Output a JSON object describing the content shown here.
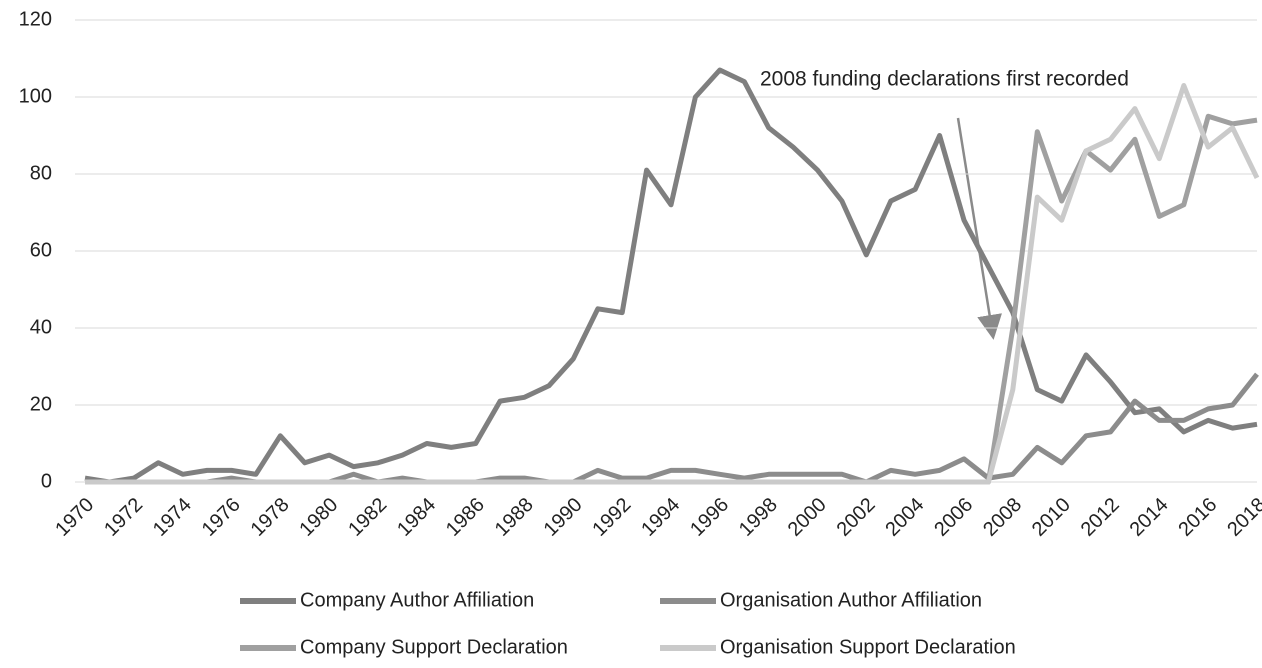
{
  "chart_data": {
    "type": "line",
    "annotation": "2008 funding declarations first recorded",
    "categories": [
      "1970",
      null,
      "1972",
      null,
      "1974",
      null,
      "1976",
      null,
      "1978",
      null,
      "1980",
      null,
      "1982",
      null,
      "1984",
      null,
      "1986",
      null,
      "1988",
      null,
      "1990",
      null,
      "1992",
      null,
      "1994",
      null,
      "1996",
      null,
      "1998",
      null,
      "2000",
      null,
      "2002",
      null,
      "2004",
      null,
      "2006",
      null,
      "2008",
      null,
      "2010",
      null,
      "2012",
      null,
      "2014",
      null,
      "2016",
      null,
      "2018"
    ],
    "series": [
      {
        "name": "Company Author Affiliation",
        "color": "#7f7f7f",
        "values": [
          1,
          0,
          1,
          5,
          2,
          3,
          3,
          2,
          12,
          5,
          7,
          4,
          5,
          7,
          10,
          9,
          10,
          21,
          22,
          25,
          32,
          45,
          44,
          81,
          72,
          100,
          107,
          104,
          92,
          87,
          81,
          73,
          59,
          73,
          76,
          90,
          68,
          56,
          44,
          24,
          21,
          33,
          26,
          18,
          19,
          13,
          16,
          14,
          15
        ]
      },
      {
        "name": "Organisation Author Affiliation",
        "color": "#8c8c8c",
        "values": [
          0,
          0,
          0,
          0,
          0,
          0,
          1,
          0,
          0,
          0,
          0,
          2,
          0,
          1,
          0,
          0,
          0,
          1,
          1,
          0,
          0,
          3,
          1,
          1,
          3,
          3,
          2,
          1,
          2,
          2,
          2,
          2,
          0,
          3,
          2,
          3,
          6,
          1,
          2,
          9,
          5,
          12,
          13,
          21,
          16,
          16,
          19,
          20,
          28
        ]
      },
      {
        "name": "Company Support Declaration",
        "color": "#a0a0a0",
        "values": [
          0,
          0,
          0,
          0,
          0,
          0,
          0,
          0,
          0,
          0,
          0,
          0,
          0,
          0,
          0,
          0,
          0,
          0,
          0,
          0,
          0,
          0,
          0,
          0,
          0,
          0,
          0,
          0,
          0,
          0,
          0,
          0,
          0,
          0,
          0,
          0,
          0,
          0,
          40,
          91,
          73,
          86,
          81,
          89,
          69,
          72,
          95,
          93,
          94
        ]
      },
      {
        "name": "Organisation Support Declaration",
        "color": "#cacaca",
        "values": [
          0,
          0,
          0,
          0,
          0,
          0,
          0,
          0,
          0,
          0,
          0,
          0,
          0,
          0,
          0,
          0,
          0,
          0,
          0,
          0,
          0,
          0,
          0,
          0,
          0,
          0,
          0,
          0,
          0,
          0,
          0,
          0,
          0,
          0,
          0,
          0,
          0,
          0,
          24,
          74,
          68,
          86,
          89,
          97,
          84,
          103,
          87,
          92,
          79
        ]
      }
    ],
    "ylim": [
      0,
      120
    ],
    "yticks": [
      0,
      20,
      40,
      60,
      80,
      100,
      120
    ],
    "grid": true,
    "legend": "bottom"
  }
}
